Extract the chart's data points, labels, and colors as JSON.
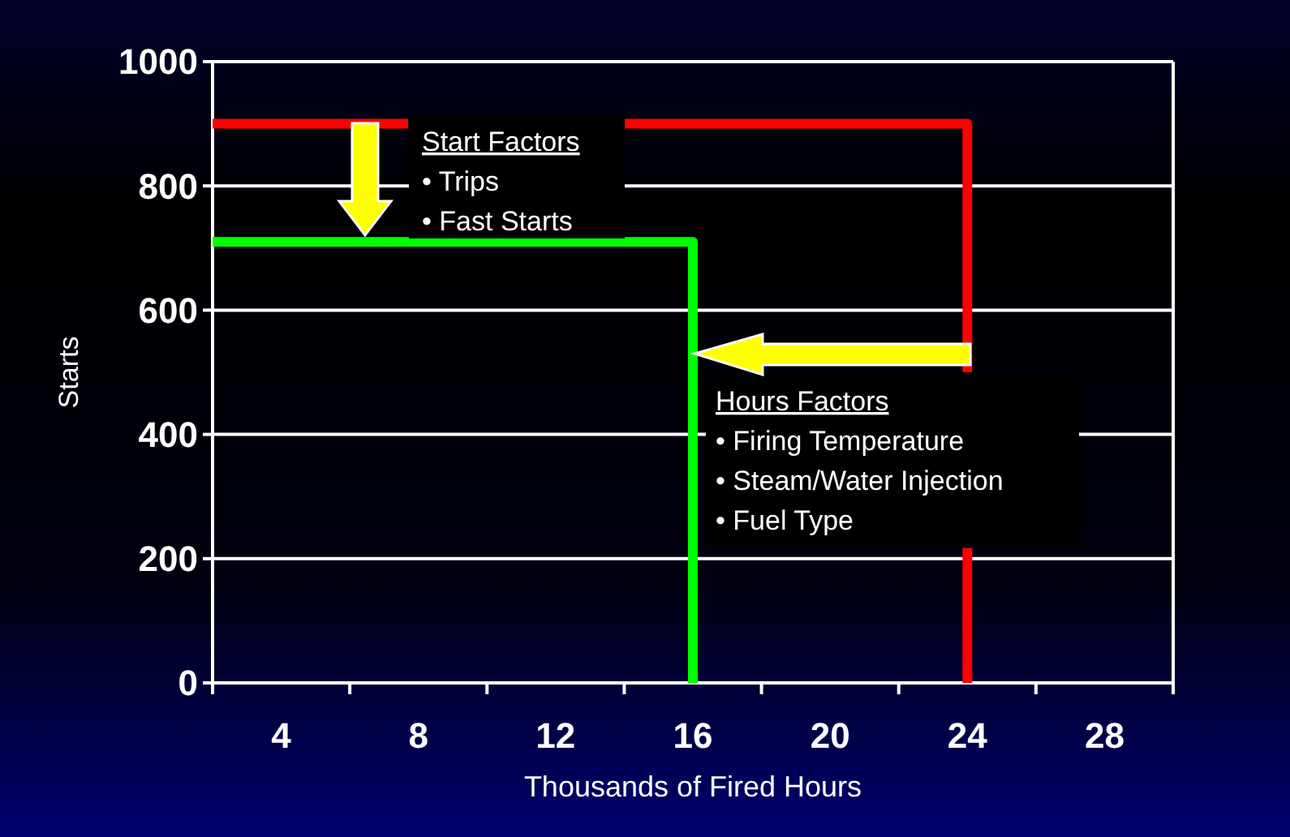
{
  "chart_data": {
    "type": "line",
    "xlabel": "Thousands of Fired Hours",
    "ylabel": "Starts",
    "xlim": [
      2,
      30
    ],
    "xticks": [
      {
        "value": 2,
        "label": null
      },
      {
        "value": 4,
        "label": "4"
      },
      {
        "value": 6,
        "label": null
      },
      {
        "value": 8,
        "label": "8"
      },
      {
        "value": 10,
        "label": null
      },
      {
        "value": 12,
        "label": "12"
      },
      {
        "value": 14,
        "label": null
      },
      {
        "value": 16,
        "label": "16"
      },
      {
        "value": 18,
        "label": null
      },
      {
        "value": 20,
        "label": "20"
      },
      {
        "value": 22,
        "label": null
      },
      {
        "value": 24,
        "label": "24"
      },
      {
        "value": 26,
        "label": null
      },
      {
        "value": 28,
        "label": "28"
      },
      {
        "value": 30,
        "label": null
      }
    ],
    "ylim": [
      0,
      1000
    ],
    "yticks": [
      0,
      200,
      400,
      600,
      800,
      1000
    ],
    "grid": "y",
    "marker": "none",
    "line_style": "solid",
    "series": [
      {
        "color": "#ff0000",
        "x": [
          2,
          7.7,
          null,
          14,
          24,
          24,
          null,
          24,
          24
        ],
        "values": [
          900,
          900,
          null,
          900,
          900,
          500,
          null,
          217,
          0
        ]
      },
      {
        "color": "#00ff00",
        "x": [
          2,
          16,
          16
        ],
        "values": [
          710,
          710,
          0
        ]
      }
    ],
    "annotations": [
      "Start Factors",
      "• Trips",
      "• Fast Starts",
      "Hours Factors",
      "• Firing Temperature",
      "• Steam/Water Injection",
      "• Fuel Type"
    ]
  }
}
